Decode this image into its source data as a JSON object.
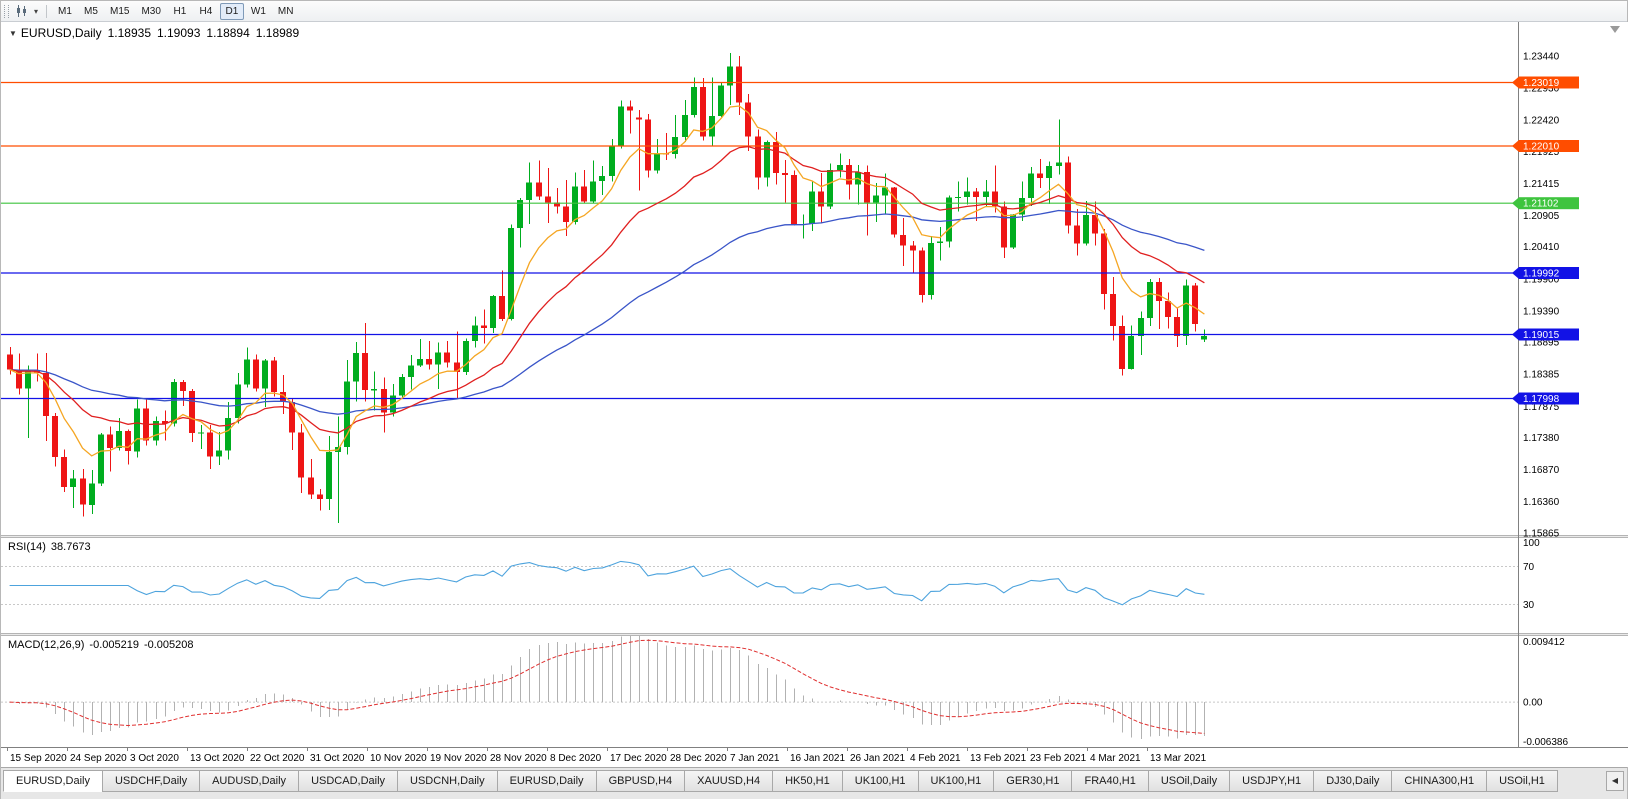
{
  "toolbar": {
    "timeframes": [
      {
        "label": "M1",
        "active": false
      },
      {
        "label": "M5",
        "active": false
      },
      {
        "label": "M15",
        "active": false
      },
      {
        "label": "M30",
        "active": false
      },
      {
        "label": "H1",
        "active": false
      },
      {
        "label": "H4",
        "active": false
      },
      {
        "label": "D1",
        "active": true
      },
      {
        "label": "W1",
        "active": false
      },
      {
        "label": "MN",
        "active": false
      }
    ]
  },
  "chart": {
    "symbol": "EURUSD,Daily",
    "open": "1.18935",
    "high": "1.19093",
    "low": "1.18894",
    "close": "1.18989"
  },
  "rsi_panel": {
    "name": "RSI(14)",
    "value": "38.7673",
    "axis_top": "100",
    "axis_upper": "70",
    "axis_lower": "30"
  },
  "macd_panel": {
    "name": "MACD(12,26,9)",
    "value_main": "-0.005219",
    "value_signal": "-0.005208",
    "axis_top": "0.009412",
    "axis_zero": "0.00",
    "axis_bottom": "-0.006386"
  },
  "tab_scroll_label": "◀",
  "colors": {
    "bull": "#00ad1f",
    "bear": "#ee1515",
    "ma_fast": "#f5a623",
    "ma_mid": "#e02020",
    "ma_slow": "#3a55c8",
    "rsi_line": "#4da3dd",
    "macd_hist": "#b2b2b2",
    "macd_signal": "#e03030",
    "axis_line": "#808080",
    "level_dotted": "#c8c8c8"
  },
  "tabs": [
    {
      "label": "EURUSD,Daily",
      "active": true
    },
    {
      "label": "USDCHF,Daily",
      "active": false
    },
    {
      "label": "AUDUSD,Daily",
      "active": false
    },
    {
      "label": "USDCAD,Daily",
      "active": false
    },
    {
      "label": "USDCNH,Daily",
      "active": false
    },
    {
      "label": "EURUSD,Daily",
      "active": false
    },
    {
      "label": "GBPUSD,H4",
      "active": false
    },
    {
      "label": "XAUUSD,H4",
      "active": false
    },
    {
      "label": "HK50,H1",
      "active": false
    },
    {
      "label": "UK100,H1",
      "active": false
    },
    {
      "label": "UK100,H1",
      "active": false
    },
    {
      "label": "GER30,H1",
      "active": false
    },
    {
      "label": "FRA40,H1",
      "active": false
    },
    {
      "label": "USOil,Daily",
      "active": false
    },
    {
      "label": "USDJPY,H1",
      "active": false
    },
    {
      "label": "DJ30,Daily",
      "active": false
    },
    {
      "label": "CHINA300,H1",
      "active": false
    },
    {
      "label": "USOil,H1",
      "active": false
    }
  ],
  "chart_data": {
    "type": "candlestick",
    "symbol": "EURUSD",
    "timeframe": "Daily",
    "title": "EURUSD,Daily",
    "y_range": [
      1.1583,
      1.2398
    ],
    "price_axis_ticks": [
      "1.23440",
      "1.22930",
      "1.22420",
      "1.21925",
      "1.21415",
      "1.20905",
      "1.20410",
      "1.19900",
      "1.19390",
      "1.18895",
      "1.18385",
      "1.17875",
      "1.17380",
      "1.16870",
      "1.16360",
      "1.15865"
    ],
    "hlines": [
      {
        "price": 1.23019,
        "label": "1.23019",
        "color": "#ff4d00"
      },
      {
        "price": 1.2201,
        "label": "1.22010",
        "color": "#ff4d00"
      },
      {
        "price": 1.21102,
        "label": "1.21102",
        "color": "#3ec43e"
      },
      {
        "price": 1.19992,
        "label": "1.19992",
        "color": "#1212e6"
      },
      {
        "price": 1.19015,
        "label": "1.19015",
        "color": "#1212e6"
      },
      {
        "price": 1.17998,
        "label": "1.17998",
        "color": "#1212e6"
      }
    ],
    "date_labels": [
      "15 Sep 2020",
      "24 Sep 2020",
      "3 Oct 2020",
      "13 Oct 2020",
      "22 Oct 2020",
      "31 Oct 2020",
      "10 Nov 2020",
      "19 Nov 2020",
      "28 Nov 2020",
      "8 Dec 2020",
      "17 Dec 2020",
      "28 Dec 2020",
      "7 Jan 2021",
      "16 Jan 2021",
      "26 Jan 2021",
      "4 Feb 2021",
      "13 Feb 2021",
      "23 Feb 2021",
      "4 Mar 2021",
      "13 Mar 2021"
    ],
    "indicators": {
      "ma": [
        {
          "period": 55,
          "color": "#3a55c8",
          "name": "ma-slow"
        },
        {
          "period": 21,
          "color": "#e02020",
          "name": "ma-mid"
        },
        {
          "period": 8,
          "color": "#f5a623",
          "name": "ma-fast"
        }
      ],
      "rsi": {
        "period": 14,
        "current": 38.7673,
        "levels": [
          70,
          30
        ]
      },
      "macd": {
        "fast": 12,
        "slow": 26,
        "signal": 9,
        "current": [
          -0.005219,
          -0.005208
        ],
        "range": [
          0.009412,
          -0.006386
        ]
      }
    },
    "candles": [
      [
        1.187,
        1.1882,
        1.1838,
        1.1846
      ],
      [
        1.1846,
        1.1871,
        1.1806,
        1.1816
      ],
      [
        1.1816,
        1.1852,
        1.1737,
        1.1845
      ],
      [
        1.1845,
        1.1871,
        1.1827,
        1.184
      ],
      [
        1.184,
        1.1872,
        1.1732,
        1.1772
      ],
      [
        1.1772,
        1.1777,
        1.1692,
        1.1707
      ],
      [
        1.1707,
        1.1719,
        1.1651,
        1.1659
      ],
      [
        1.1659,
        1.1686,
        1.1626,
        1.1673
      ],
      [
        1.1673,
        1.1688,
        1.1612,
        1.1631
      ],
      [
        1.1631,
        1.1686,
        1.1616,
        1.1665
      ],
      [
        1.1665,
        1.1745,
        1.1661,
        1.1743
      ],
      [
        1.1743,
        1.1755,
        1.1684,
        1.1721
      ],
      [
        1.1721,
        1.1769,
        1.1717,
        1.1748
      ],
      [
        1.1748,
        1.1751,
        1.1695,
        1.1716
      ],
      [
        1.1716,
        1.1798,
        1.1706,
        1.1784
      ],
      [
        1.1784,
        1.1798,
        1.1725,
        1.1733
      ],
      [
        1.1733,
        1.1771,
        1.1725,
        1.1764
      ],
      [
        1.1764,
        1.1781,
        1.1733,
        1.176
      ],
      [
        1.176,
        1.1831,
        1.1755,
        1.1826
      ],
      [
        1.1826,
        1.1829,
        1.1788,
        1.1812
      ],
      [
        1.1812,
        1.1815,
        1.1731,
        1.1745
      ],
      [
        1.1745,
        1.1758,
        1.172,
        1.1746
      ],
      [
        1.1746,
        1.1758,
        1.1688,
        1.1708
      ],
      [
        1.1708,
        1.1747,
        1.1694,
        1.1717
      ],
      [
        1.1717,
        1.1794,
        1.1703,
        1.1769
      ],
      [
        1.1769,
        1.184,
        1.176,
        1.1822
      ],
      [
        1.1822,
        1.1881,
        1.1817,
        1.1862
      ],
      [
        1.1862,
        1.187,
        1.1811,
        1.1816
      ],
      [
        1.1816,
        1.1863,
        1.1786,
        1.186
      ],
      [
        1.186,
        1.1866,
        1.1803,
        1.181
      ],
      [
        1.181,
        1.1837,
        1.1775,
        1.1794
      ],
      [
        1.1794,
        1.18,
        1.1718,
        1.1746
      ],
      [
        1.1746,
        1.1759,
        1.165,
        1.1674
      ],
      [
        1.1674,
        1.1704,
        1.164,
        1.1647
      ],
      [
        1.1647,
        1.1656,
        1.1622,
        1.164
      ],
      [
        1.164,
        1.174,
        1.1623,
        1.1715
      ],
      [
        1.1715,
        1.1771,
        1.1602,
        1.1723
      ],
      [
        1.1723,
        1.1861,
        1.1711,
        1.1827
      ],
      [
        1.1827,
        1.189,
        1.1795,
        1.1872
      ],
      [
        1.1872,
        1.192,
        1.1795,
        1.1813
      ],
      [
        1.1813,
        1.1843,
        1.1781,
        1.1815
      ],
      [
        1.1815,
        1.1833,
        1.1746,
        1.1778
      ],
      [
        1.1778,
        1.1823,
        1.1771,
        1.1805
      ],
      [
        1.1805,
        1.1839,
        1.1799,
        1.1834
      ],
      [
        1.1834,
        1.1869,
        1.1814,
        1.1852
      ],
      [
        1.1852,
        1.1894,
        1.185,
        1.1863
      ],
      [
        1.1863,
        1.1891,
        1.1846,
        1.1854
      ],
      [
        1.1854,
        1.1889,
        1.1815,
        1.1873
      ],
      [
        1.1873,
        1.1891,
        1.1849,
        1.1857
      ],
      [
        1.1857,
        1.1906,
        1.18,
        1.1842
      ],
      [
        1.1842,
        1.1895,
        1.1837,
        1.1891
      ],
      [
        1.1891,
        1.193,
        1.1881,
        1.1916
      ],
      [
        1.1916,
        1.1941,
        1.1887,
        1.1912
      ],
      [
        1.1912,
        1.1964,
        1.1904,
        1.1963
      ],
      [
        1.1963,
        1.2003,
        1.1923,
        1.1926
      ],
      [
        1.1926,
        1.2076,
        1.1924,
        1.2071
      ],
      [
        1.2071,
        1.2118,
        1.204,
        1.2115
      ],
      [
        1.2115,
        1.2175,
        1.2077,
        1.2143
      ],
      [
        1.2143,
        1.2178,
        1.2115,
        1.2121
      ],
      [
        1.2121,
        1.2166,
        1.2079,
        1.2111
      ],
      [
        1.2111,
        1.2134,
        1.2094,
        1.2105
      ],
      [
        1.2105,
        1.2147,
        1.2058,
        1.208
      ],
      [
        1.208,
        1.2159,
        1.2076,
        1.2137
      ],
      [
        1.2137,
        1.2163,
        1.211,
        1.2113
      ],
      [
        1.2113,
        1.2178,
        1.211,
        1.2145
      ],
      [
        1.2145,
        1.2169,
        1.2123,
        1.2153
      ],
      [
        1.2153,
        1.2212,
        1.2145,
        1.22
      ],
      [
        1.22,
        1.2273,
        1.2197,
        1.2264
      ],
      [
        1.2264,
        1.2273,
        1.2221,
        1.2257
      ],
      [
        1.2246,
        1.2258,
        1.213,
        1.2243
      ],
      [
        1.2243,
        1.2252,
        1.2151,
        1.2162
      ],
      [
        1.2162,
        1.2212,
        1.2157,
        1.2189
      ],
      [
        1.2189,
        1.2222,
        1.2179,
        1.2188
      ],
      [
        1.2188,
        1.225,
        1.2181,
        1.2215
      ],
      [
        1.2215,
        1.2274,
        1.2207,
        1.225
      ],
      [
        1.225,
        1.231,
        1.2246,
        1.2295
      ],
      [
        1.2295,
        1.2309,
        1.221,
        1.2216
      ],
      [
        1.2216,
        1.231,
        1.22,
        1.2249
      ],
      [
        1.2249,
        1.2303,
        1.2247,
        1.2297
      ],
      [
        1.2297,
        1.2349,
        1.2266,
        1.2327
      ],
      [
        1.2327,
        1.2344,
        1.225,
        1.227
      ],
      [
        1.227,
        1.2284,
        1.2193,
        1.2216
      ],
      [
        1.2216,
        1.2227,
        1.2132,
        1.2151
      ],
      [
        1.2151,
        1.221,
        1.2137,
        1.2207
      ],
      [
        1.2207,
        1.2223,
        1.214,
        1.2158
      ],
      [
        1.2158,
        1.2179,
        1.2111,
        1.2155
      ],
      [
        1.2155,
        1.2162,
        1.2075,
        1.2076
      ],
      [
        1.2076,
        1.2092,
        1.2054,
        1.2077
      ],
      [
        1.2077,
        1.2145,
        1.2066,
        1.2129
      ],
      [
        1.2129,
        1.2158,
        1.2078,
        1.2105
      ],
      [
        1.2105,
        1.2173,
        1.2101,
        1.2163
      ],
      [
        1.2163,
        1.2189,
        1.2151,
        1.2171
      ],
      [
        1.2171,
        1.218,
        1.2116,
        1.214
      ],
      [
        1.214,
        1.2171,
        1.2108,
        1.216
      ],
      [
        1.216,
        1.217,
        1.2059,
        1.2111
      ],
      [
        1.2111,
        1.2142,
        1.208,
        1.2122
      ],
      [
        1.2122,
        1.2157,
        1.2093,
        1.2135
      ],
      [
        1.2135,
        1.2136,
        1.2056,
        1.206
      ],
      [
        1.206,
        1.2087,
        1.201,
        1.2043
      ],
      [
        1.2043,
        1.205,
        1.1999,
        1.2035
      ],
      [
        1.2035,
        1.204,
        1.1952,
        1.1964
      ],
      [
        1.1964,
        1.2058,
        1.1957,
        1.2047
      ],
      [
        1.2047,
        1.2072,
        1.2019,
        1.2049
      ],
      [
        1.2049,
        1.2122,
        1.204,
        1.2119
      ],
      [
        1.2119,
        1.2145,
        1.2097,
        1.212
      ],
      [
        1.212,
        1.2151,
        1.2108,
        1.2129
      ],
      [
        1.2129,
        1.2134,
        1.2082,
        1.212
      ],
      [
        1.212,
        1.2147,
        1.2104,
        1.2129
      ],
      [
        1.2129,
        1.217,
        1.2095,
        1.2105
      ],
      [
        1.2105,
        1.2113,
        1.2023,
        1.204
      ],
      [
        1.204,
        1.2093,
        1.2037,
        1.2092
      ],
      [
        1.2092,
        1.2145,
        1.2082,
        1.2118
      ],
      [
        1.2118,
        1.2168,
        1.2106,
        1.2157
      ],
      [
        1.2157,
        1.218,
        1.2134,
        1.215
      ],
      [
        1.215,
        1.2176,
        1.2109,
        1.2169
      ],
      [
        1.2169,
        1.2243,
        1.2156,
        1.2175
      ],
      [
        1.2175,
        1.2184,
        1.2062,
        1.2075
      ],
      [
        1.2075,
        1.2101,
        1.2027,
        1.2046
      ],
      [
        1.2046,
        1.2114,
        1.2043,
        1.2091
      ],
      [
        1.2091,
        1.2113,
        1.2043,
        1.2062
      ],
      [
        1.2062,
        1.2069,
        1.1941,
        1.1966
      ],
      [
        1.1966,
        1.1993,
        1.1892,
        1.1915
      ],
      [
        1.1915,
        1.1932,
        1.1836,
        1.1847
      ],
      [
        1.1847,
        1.1916,
        1.1846,
        1.1899
      ],
      [
        1.1899,
        1.1938,
        1.1869,
        1.1928
      ],
      [
        1.1928,
        1.199,
        1.1915,
        1.1985
      ],
      [
        1.1985,
        1.1991,
        1.191,
        1.1955
      ],
      [
        1.1955,
        1.1968,
        1.1911,
        1.1929
      ],
      [
        1.1929,
        1.1943,
        1.1882,
        1.1899
      ],
      [
        1.1899,
        1.1989,
        1.1885,
        1.1979
      ],
      [
        1.1979,
        1.1983,
        1.1906,
        1.1918
      ],
      [
        1.18935,
        1.19093,
        1.18894,
        1.18989
      ]
    ]
  }
}
